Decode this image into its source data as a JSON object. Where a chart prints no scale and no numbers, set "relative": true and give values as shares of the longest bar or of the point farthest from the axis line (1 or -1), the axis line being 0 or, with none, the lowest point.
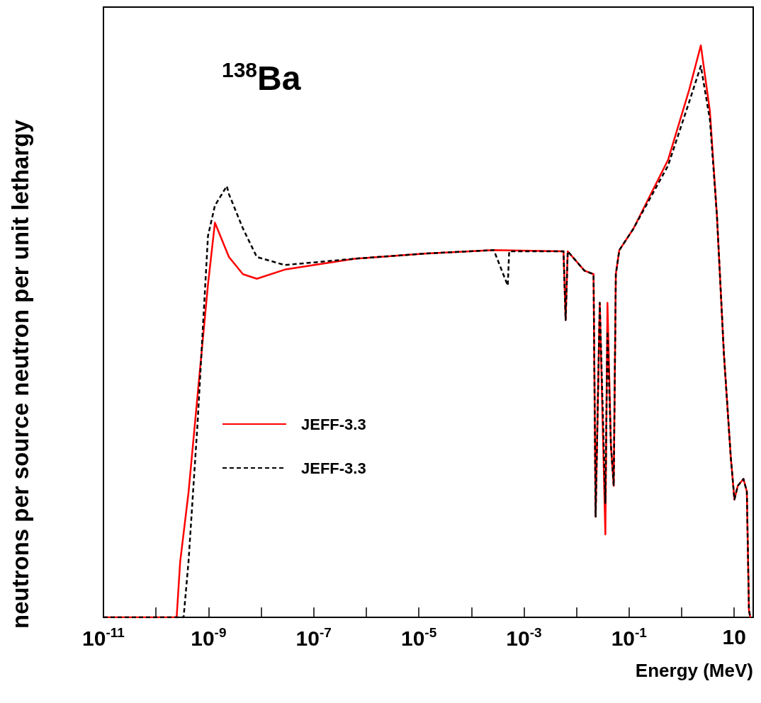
{
  "chart_data": {
    "type": "line",
    "relative": true,
    "xlabel": "Energy (MeV)",
    "ylabel": "neutrons per source neutron per unit lethargy",
    "annotations": [
      "$^{138}$Ba"
    ],
    "log": "x",
    "xlim": [
      1e-11,
      23
    ],
    "xticks": [
      {
        "value": 1e-11,
        "label": "10$^{-11}$"
      },
      {
        "value": 1e-10,
        "label": null
      },
      {
        "value": 1e-09,
        "label": "10$^{-9}$"
      },
      {
        "value": 1e-08,
        "label": null
      },
      {
        "value": 1e-07,
        "label": "10$^{-7}$"
      },
      {
        "value": 1e-06,
        "label": null
      },
      {
        "value": 1e-05,
        "label": "10$^{-5}$"
      },
      {
        "value": 0.0001,
        "label": null
      },
      {
        "value": 0.001,
        "label": "10$^{-3}$"
      },
      {
        "value": 0.01,
        "label": null
      },
      {
        "value": 0.1,
        "label": "10$^{-1}$"
      },
      {
        "value": 1,
        "label": null
      },
      {
        "value": 10,
        "label": "10"
      }
    ],
    "legend": "bottom left",
    "grid": false,
    "marker": "none",
    "series": [
      {
        "name": "JEFF-3.3",
        "color": "#ff0000",
        "line_style": "solid",
        "x": [
          1e-11,
          2.47e-10,
          2.88e-10,
          4.15e-10,
          6.17e-10,
          9.75e-10,
          1.32e-09,
          2.44e-09,
          4.5e-09,
          8.28e-09,
          2.81e-08,
          5.96e-07,
          1.26e-05,
          0.000267,
          0.00566,
          0.00621,
          0.00681,
          0.0142,
          0.0211,
          0.0231,
          0.0277,
          0.0354,
          0.0388,
          0.0452,
          0.051,
          0.056,
          0.0652,
          0.12,
          0.553,
          1.38,
          2.32,
          3.45,
          4.69,
          6.37,
          8.63,
          10.1,
          11.7,
          15,
          17.4,
          19.1,
          20.3
        ],
        "values": [
          0,
          0,
          0.097,
          0.218,
          0.388,
          0.582,
          0.69,
          0.63,
          0.6,
          0.592,
          0.608,
          0.627,
          0.636,
          0.642,
          0.64,
          0.52,
          0.64,
          0.606,
          0.6,
          0.176,
          0.55,
          0.145,
          0.55,
          0.3,
          0.23,
          0.6,
          0.642,
          0.679,
          0.8,
          0.921,
          1,
          0.885,
          0.703,
          0.461,
          0.279,
          0.206,
          0.23,
          0.242,
          0.22,
          0.012,
          0
        ]
      },
      {
        "name": "JEFF-3.3",
        "color": "#000000",
        "line_style": "dashed",
        "x": [
          1e-11,
          3.35e-10,
          4.15e-10,
          6.17e-10,
          9.75e-10,
          1.32e-09,
          2.22e-09,
          2.44e-09,
          4.5e-09,
          8.28e-09,
          2.81e-08,
          5.96e-07,
          1.26e-05,
          0.000267,
          0.000492,
          0.000524,
          0.00566,
          0.00621,
          0.00681,
          0.0142,
          0.0211,
          0.0231,
          0.0277,
          0.0354,
          0.0388,
          0.0452,
          0.051,
          0.056,
          0.0652,
          0.12,
          0.553,
          1.38,
          2.32,
          3.45,
          4.69,
          6.37,
          8.63,
          10.1,
          11.7,
          15,
          17.4,
          19.1,
          20.3
        ],
        "values": [
          0,
          0,
          0.097,
          0.339,
          0.667,
          0.72,
          0.754,
          0.74,
          0.68,
          0.63,
          0.616,
          0.627,
          0.636,
          0.642,
          0.58,
          0.64,
          0.64,
          0.52,
          0.64,
          0.606,
          0.6,
          0.176,
          0.55,
          0.2,
          0.5,
          0.3,
          0.23,
          0.6,
          0.642,
          0.679,
          0.79,
          0.9,
          0.964,
          0.87,
          0.703,
          0.461,
          0.279,
          0.206,
          0.23,
          0.242,
          0.22,
          0.012,
          0
        ]
      }
    ]
  }
}
